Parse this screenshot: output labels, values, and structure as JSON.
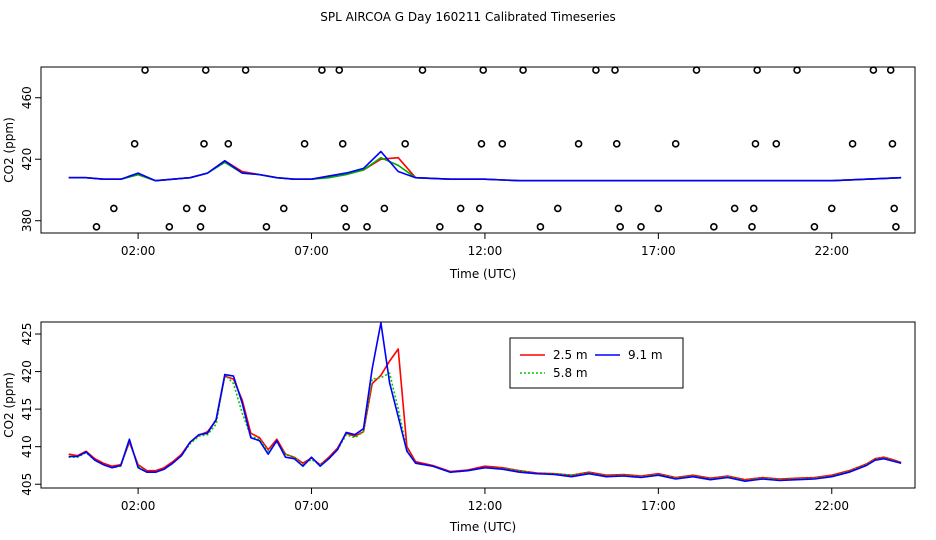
{
  "title": "SPL AIRCOA G  Day 160211  Calibrated Timeseries",
  "chart_data": [
    {
      "type": "scatter",
      "xlabel": "Time (UTC)",
      "ylabel": "CO2 (ppm)",
      "xticks": [
        "02:00",
        "07:00",
        "12:00",
        "17:00",
        "22:00"
      ],
      "yticks": [
        "380",
        "420",
        "460"
      ],
      "xlim": [
        -0.8,
        24.4
      ],
      "ylim": [
        372,
        480
      ],
      "grid": false,
      "circles": [
        {
          "x": 0.8,
          "y": 376
        },
        {
          "x": 1.3,
          "y": 388
        },
        {
          "x": 1.9,
          "y": 430
        },
        {
          "x": 2.2,
          "y": 478
        },
        {
          "x": 2.9,
          "y": 376
        },
        {
          "x": 3.4,
          "y": 388
        },
        {
          "x": 3.8,
          "y": 376
        },
        {
          "x": 3.85,
          "y": 388
        },
        {
          "x": 3.9,
          "y": 430
        },
        {
          "x": 3.95,
          "y": 478
        },
        {
          "x": 4.6,
          "y": 430
        },
        {
          "x": 5.1,
          "y": 478
        },
        {
          "x": 5.7,
          "y": 376
        },
        {
          "x": 6.2,
          "y": 388
        },
        {
          "x": 6.8,
          "y": 430
        },
        {
          "x": 7.3,
          "y": 478
        },
        {
          "x": 7.8,
          "y": 478
        },
        {
          "x": 7.9,
          "y": 430
        },
        {
          "x": 7.95,
          "y": 388
        },
        {
          "x": 8.0,
          "y": 376
        },
        {
          "x": 8.6,
          "y": 376
        },
        {
          "x": 9.1,
          "y": 388
        },
        {
          "x": 9.7,
          "y": 430
        },
        {
          "x": 10.2,
          "y": 478
        },
        {
          "x": 10.7,
          "y": 376
        },
        {
          "x": 11.3,
          "y": 388
        },
        {
          "x": 11.8,
          "y": 376
        },
        {
          "x": 11.85,
          "y": 388
        },
        {
          "x": 11.9,
          "y": 430
        },
        {
          "x": 11.95,
          "y": 478
        },
        {
          "x": 12.5,
          "y": 430
        },
        {
          "x": 13.1,
          "y": 478
        },
        {
          "x": 13.6,
          "y": 376
        },
        {
          "x": 14.1,
          "y": 388
        },
        {
          "x": 14.7,
          "y": 430
        },
        {
          "x": 15.2,
          "y": 478
        },
        {
          "x": 15.75,
          "y": 478
        },
        {
          "x": 15.8,
          "y": 430
        },
        {
          "x": 15.85,
          "y": 388
        },
        {
          "x": 15.9,
          "y": 376
        },
        {
          "x": 16.5,
          "y": 376
        },
        {
          "x": 17.0,
          "y": 388
        },
        {
          "x": 17.5,
          "y": 430
        },
        {
          "x": 18.1,
          "y": 478
        },
        {
          "x": 18.6,
          "y": 376
        },
        {
          "x": 19.2,
          "y": 388
        },
        {
          "x": 19.7,
          "y": 376
        },
        {
          "x": 19.75,
          "y": 388
        },
        {
          "x": 19.8,
          "y": 430
        },
        {
          "x": 19.85,
          "y": 478
        },
        {
          "x": 20.4,
          "y": 430
        },
        {
          "x": 21.0,
          "y": 478
        },
        {
          "x": 21.5,
          "y": 376
        },
        {
          "x": 22.0,
          "y": 388
        },
        {
          "x": 22.6,
          "y": 430
        },
        {
          "x": 23.2,
          "y": 478
        },
        {
          "x": 23.7,
          "y": 478
        },
        {
          "x": 23.75,
          "y": 430
        },
        {
          "x": 23.8,
          "y": 388
        },
        {
          "x": 23.85,
          "y": 376
        }
      ],
      "series": [
        {
          "color": "#ff0000",
          "x": [
            0,
            0.5,
            1,
            1.5,
            2,
            2.5,
            3,
            3.5,
            4,
            4.5,
            5,
            5.5,
            6,
            6.5,
            7,
            7.5,
            8,
            8.5,
            9,
            9.5,
            10,
            11,
            12,
            13,
            14,
            15,
            16,
            17,
            18,
            19,
            20,
            21,
            22,
            23,
            24
          ],
          "values": [
            408,
            408,
            407,
            407,
            410,
            406,
            407,
            408,
            411,
            419,
            412,
            410,
            408,
            407,
            407,
            409,
            411,
            413,
            420,
            421,
            408,
            407,
            407,
            406,
            406,
            406,
            406,
            406,
            406,
            406,
            406,
            406,
            406,
            407,
            408
          ]
        },
        {
          "color": "#00aa00",
          "x": [
            0,
            0.5,
            1,
            1.5,
            2,
            2.5,
            3,
            3.5,
            4,
            4.5,
            5,
            5.5,
            6,
            6.5,
            7,
            7.5,
            8,
            8.5,
            9,
            9.5,
            10,
            11,
            12,
            13,
            14,
            15,
            16,
            17,
            18,
            19,
            20,
            21,
            22,
            23,
            24
          ],
          "values": [
            408,
            408,
            407,
            407,
            410,
            406,
            407,
            408,
            411,
            418,
            411,
            410,
            408,
            407,
            407,
            408,
            410,
            413,
            421,
            416,
            408,
            407,
            407,
            406,
            406,
            406,
            406,
            406,
            406,
            406,
            406,
            406,
            406,
            407,
            408
          ]
        },
        {
          "color": "#0000ff",
          "x": [
            0,
            0.5,
            1,
            1.5,
            2,
            2.5,
            3,
            3.5,
            4,
            4.5,
            5,
            5.5,
            6,
            6.5,
            7,
            7.5,
            8,
            8.5,
            9,
            9.5,
            10,
            11,
            12,
            13,
            14,
            15,
            16,
            17,
            18,
            19,
            20,
            21,
            22,
            23,
            24
          ],
          "values": [
            408,
            408,
            407,
            407,
            411,
            406,
            407,
            408,
            411,
            419,
            411,
            410,
            408,
            407,
            407,
            409,
            411,
            414,
            425,
            412,
            408,
            407,
            407,
            406,
            406,
            406,
            406,
            406,
            406,
            406,
            406,
            406,
            406,
            407,
            408
          ]
        }
      ]
    },
    {
      "type": "line",
      "xlabel": "Time (UTC)",
      "ylabel": "CO2 (ppm)",
      "xticks": [
        "02:00",
        "07:00",
        "12:00",
        "17:00",
        "22:00"
      ],
      "yticks": [
        "405",
        "410",
        "415",
        "420",
        "425"
      ],
      "xlim": [
        -0.8,
        24.4
      ],
      "ylim": [
        404.5,
        426.6
      ],
      "grid": false,
      "legend": {
        "position": "top-center",
        "entries": [
          "2.5 m",
          "9.1 m",
          "5.8 m"
        ]
      },
      "series": [
        {
          "name": "2.5 m",
          "color": "#ff0000",
          "dash": "none",
          "x": [
            0,
            0.25,
            0.5,
            0.75,
            1,
            1.25,
            1.5,
            1.75,
            2,
            2.25,
            2.5,
            2.75,
            3,
            3.25,
            3.5,
            3.75,
            4,
            4.25,
            4.5,
            4.75,
            5,
            5.25,
            5.5,
            5.75,
            6,
            6.25,
            6.5,
            6.75,
            7,
            7.25,
            7.5,
            7.75,
            8,
            8.25,
            8.5,
            8.75,
            9,
            9.25,
            9.5,
            9.75,
            10,
            10.5,
            11,
            11.5,
            12,
            12.5,
            13,
            13.5,
            14,
            14.5,
            15,
            15.5,
            16,
            16.5,
            17,
            17.5,
            18,
            18.5,
            19,
            19.5,
            20,
            20.5,
            21,
            21.5,
            22,
            22.5,
            23,
            23.25,
            23.5,
            23.75,
            24
          ],
          "values": [
            409,
            408.8,
            409.4,
            408.4,
            407.8,
            407.4,
            407.6,
            410.6,
            407.6,
            406.8,
            406.8,
            407.2,
            408,
            409,
            410.6,
            411.5,
            412,
            413.5,
            419.4,
            419,
            416.2,
            411.8,
            411.2,
            409.6,
            411,
            409,
            408.6,
            407.8,
            408.5,
            407.6,
            408.6,
            409.8,
            411.8,
            411.4,
            412,
            418.4,
            419.5,
            421.4,
            423,
            410,
            408,
            407.5,
            406.7,
            406.9,
            407.4,
            407.2,
            406.8,
            406.5,
            406.4,
            406.2,
            406.6,
            406.2,
            406.3,
            406.1,
            406.4,
            405.9,
            406.2,
            405.8,
            406.1,
            405.6,
            405.9,
            405.7,
            405.8,
            405.9,
            406.2,
            406.8,
            407.7,
            408.4,
            408.6,
            408.3,
            407.9
          ]
        },
        {
          "name": "5.8 m",
          "color": "#00cc00",
          "dash": "2 2",
          "x": [
            0,
            0.25,
            0.5,
            0.75,
            1,
            1.25,
            1.5,
            1.75,
            2,
            2.25,
            2.5,
            2.75,
            3,
            3.25,
            3.5,
            3.75,
            4,
            4.25,
            4.5,
            4.75,
            5,
            5.25,
            5.5,
            5.75,
            6,
            6.25,
            6.5,
            6.75,
            7,
            7.25,
            7.5,
            7.75,
            8,
            8.25,
            8.5,
            8.75,
            9,
            9.25,
            9.5,
            9.75,
            10,
            10.5,
            11,
            11.5,
            12,
            12.5,
            13,
            13.5,
            14,
            14.5,
            15,
            15.5,
            16,
            16.5,
            17,
            17.5,
            18,
            18.5,
            19,
            19.5,
            20,
            20.5,
            21,
            21.5,
            22,
            22.5,
            23,
            23.25,
            23.5,
            23.75,
            24
          ],
          "values": [
            408.6,
            408.6,
            409.2,
            408.2,
            407.6,
            407.2,
            407.4,
            410.8,
            407.4,
            406.6,
            406.6,
            407,
            407.8,
            408.8,
            410.4,
            411.4,
            411.6,
            413,
            419.6,
            418.4,
            414.5,
            411.4,
            411,
            409.4,
            410.6,
            409,
            408.6,
            407.6,
            408.3,
            407.6,
            408.4,
            409.6,
            411.6,
            411.2,
            412,
            419,
            419.2,
            419.8,
            415,
            409.6,
            407.8,
            407.4,
            406.6,
            406.8,
            407.2,
            407.1,
            406.8,
            406.4,
            406.4,
            406.2,
            406.5,
            406.1,
            406.2,
            406,
            406.3,
            405.8,
            406.1,
            405.7,
            406,
            405.5,
            405.8,
            405.6,
            405.7,
            405.8,
            406.1,
            406.7,
            407.6,
            408.3,
            408.5,
            408.2,
            407.8
          ]
        },
        {
          "name": "9.1 m",
          "color": "#0000ff",
          "dash": "none",
          "x": [
            0,
            0.25,
            0.5,
            0.75,
            1,
            1.25,
            1.5,
            1.75,
            2,
            2.25,
            2.5,
            2.75,
            3,
            3.25,
            3.5,
            3.75,
            4,
            4.25,
            4.5,
            4.75,
            5,
            5.25,
            5.5,
            5.75,
            6,
            6.25,
            6.5,
            6.75,
            7,
            7.25,
            7.5,
            7.75,
            8,
            8.25,
            8.5,
            8.75,
            9,
            9.25,
            9.5,
            9.75,
            10,
            10.5,
            11,
            11.5,
            12,
            12.5,
            13,
            13.5,
            14,
            14.5,
            15,
            15.5,
            16,
            16.5,
            17,
            17.5,
            18,
            18.5,
            19,
            19.5,
            20,
            20.5,
            21,
            21.5,
            22,
            22.5,
            23,
            23.25,
            23.5,
            23.75,
            24
          ],
          "values": [
            408.7,
            408.7,
            409.3,
            408.2,
            407.6,
            407.2,
            407.5,
            411,
            407.2,
            406.6,
            406.6,
            407,
            407.8,
            408.8,
            410.6,
            411.6,
            411.8,
            413.6,
            419.6,
            419.4,
            415.8,
            411.2,
            410.8,
            409,
            410.8,
            408.6,
            408.4,
            407.4,
            408.6,
            407.4,
            408.4,
            409.6,
            411.9,
            411.6,
            412.4,
            420.4,
            426.5,
            418.5,
            414,
            409.4,
            407.8,
            407.4,
            406.6,
            406.8,
            407.2,
            407,
            406.6,
            406.4,
            406.3,
            406,
            406.4,
            406,
            406.1,
            405.9,
            406.2,
            405.7,
            406,
            405.6,
            405.9,
            405.4,
            405.7,
            405.5,
            405.6,
            405.7,
            406,
            406.6,
            407.5,
            408.2,
            408.4,
            408.1,
            407.8
          ]
        }
      ]
    }
  ]
}
